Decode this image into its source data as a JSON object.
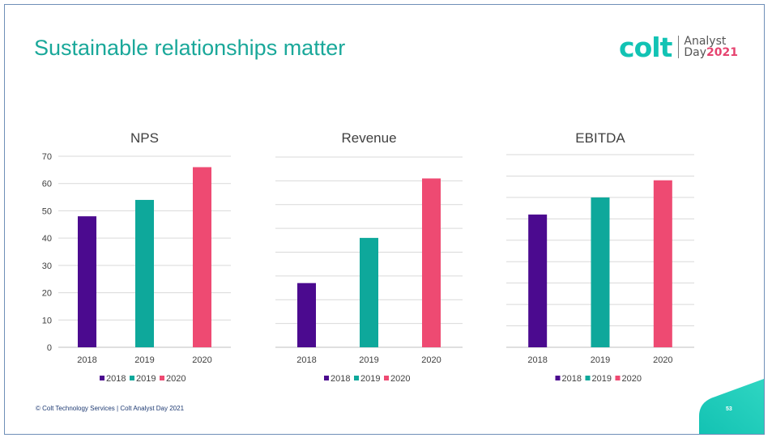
{
  "slide": {
    "title": "Sustainable relationships matter",
    "logo": {
      "wordmark": "colt",
      "event_line1": "Analyst",
      "event_line2_word": "Day",
      "event_line2_year": "2021"
    },
    "footer": "© Colt Technology Services  |  Colt Analyst Day 2021",
    "page_number": "53"
  },
  "colors": {
    "2018": "#4b0a8f",
    "2019": "#0ea89b",
    "2020": "#ee4a72",
    "accent": "#1aa89a",
    "gridline": "#d9d9d9"
  },
  "chart_data": [
    {
      "type": "bar",
      "title": "NPS",
      "categories": [
        "2018",
        "2019",
        "2020"
      ],
      "values": [
        48,
        54,
        66
      ],
      "ylim": [
        0,
        70
      ],
      "yticks": [
        "0",
        "10",
        "20",
        "30",
        "40",
        "50",
        "60",
        "70"
      ],
      "show_yaxis_labels": true,
      "grid": true,
      "legend": [
        "2018",
        "2019",
        "2020"
      ],
      "legend_position": "bottom"
    },
    {
      "type": "bar",
      "title": "Revenue",
      "categories": [
        "2018",
        "2019",
        "2020"
      ],
      "values": [
        27,
        46,
        71
      ],
      "ylim": [
        0,
        80
      ],
      "grid_lines": 8,
      "show_yaxis_labels": false,
      "grid": true,
      "legend": [
        "2018",
        "2019",
        "2020"
      ],
      "legend_position": "bottom"
    },
    {
      "type": "bar",
      "title": "EBITDA",
      "categories": [
        "2018",
        "2019",
        "2020"
      ],
      "values": [
        62,
        70,
        78
      ],
      "ylim": [
        0,
        90
      ],
      "grid_lines": 9,
      "show_yaxis_labels": false,
      "grid": true,
      "legend": [
        "2018",
        "2019",
        "2020"
      ],
      "legend_position": "bottom"
    }
  ]
}
